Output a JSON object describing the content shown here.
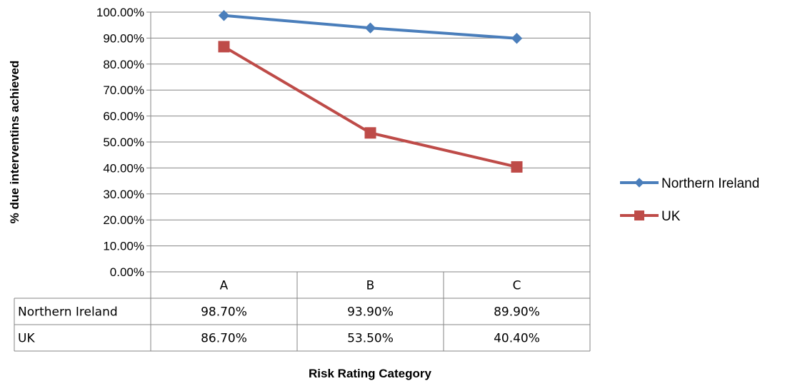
{
  "chart_data": {
    "type": "line",
    "title": "",
    "xlabel": "Risk Rating Category",
    "ylabel": "% due interventins achieved",
    "ylim": [
      0,
      100
    ],
    "ytick_step": 10,
    "ytick_labels": [
      "0.00%",
      "10.00%",
      "20.00%",
      "30.00%",
      "40.00%",
      "50.00%",
      "60.00%",
      "70.00%",
      "80.00%",
      "90.00%",
      "100.00%"
    ],
    "categories": [
      "A",
      "B",
      "C"
    ],
    "grid": true,
    "legend_position": "right",
    "data_table": true,
    "series": [
      {
        "name": "Northern Ireland",
        "values": [
          98.7,
          93.9,
          89.9
        ],
        "labels": [
          "98.70%",
          "93.90%",
          "89.90%"
        ],
        "color": "#4a7ebb",
        "marker": "diamond"
      },
      {
        "name": "UK",
        "values": [
          86.7,
          53.5,
          40.4
        ],
        "labels": [
          "86.70%",
          "53.50%",
          "40.40%"
        ],
        "color": "#be4b48",
        "marker": "square"
      }
    ]
  }
}
